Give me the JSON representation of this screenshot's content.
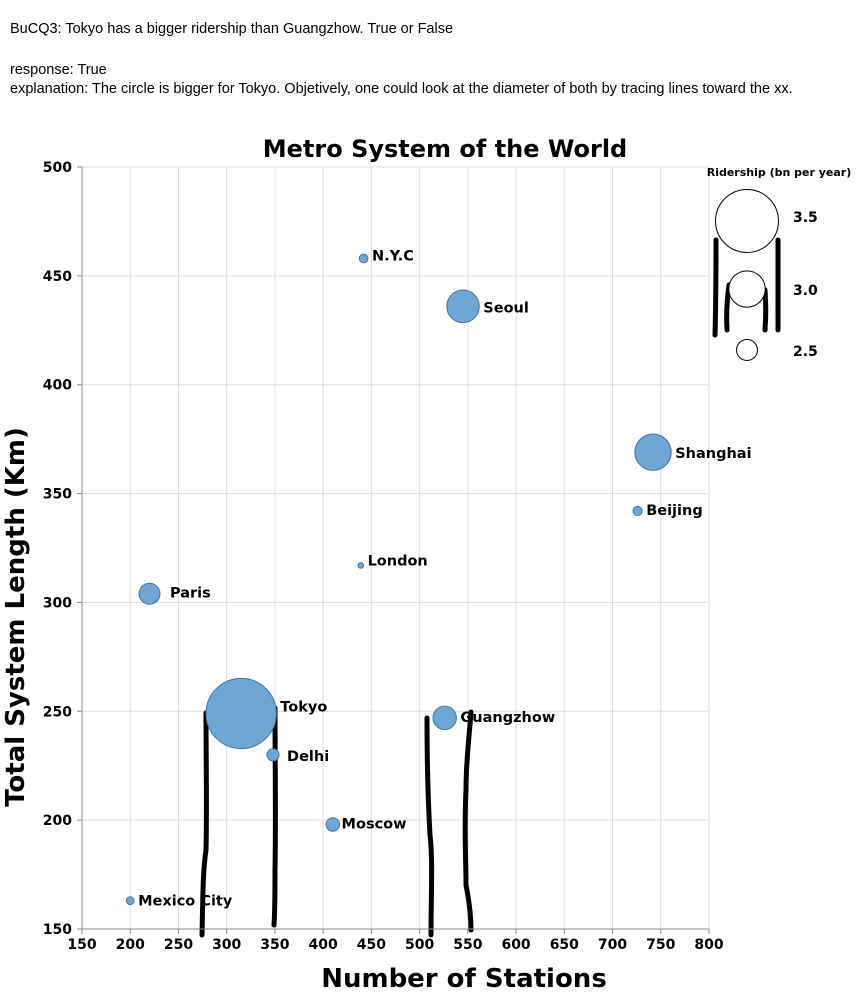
{
  "question": {
    "prompt": "BuCQ3: Tokyo has a bigger ridership than Guangzhow. True or False",
    "response": "response: True",
    "explanation": "explanation: The circle is bigger for Tokyo. Objetively, one could look at the diameter of both by tracing lines toward the xx."
  },
  "chart_data": {
    "type": "scatter",
    "title": "Metro System of the World",
    "xlabel": "Number of Stations",
    "ylabel": "Total System Length (Km)",
    "xlim": [
      150,
      800
    ],
    "ylim": [
      150,
      500
    ],
    "x_ticks": [
      150,
      200,
      250,
      300,
      350,
      400,
      450,
      500,
      550,
      600,
      650,
      700,
      750,
      800
    ],
    "y_ticks": [
      150,
      200,
      250,
      300,
      350,
      400,
      450,
      500
    ],
    "grid": true,
    "size_encoding": "Ridership (bn per year)",
    "points": [
      {
        "label": "N.Y.C",
        "x": 442,
        "y": 458,
        "ridership": 1.7
      },
      {
        "label": "Seoul",
        "x": 545,
        "y": 436,
        "ridership": 2.9
      },
      {
        "label": "Shanghai",
        "x": 742,
        "y": 369,
        "ridership": 3.0
      },
      {
        "label": "Beijing",
        "x": 726,
        "y": 342,
        "ridership": 1.75
      },
      {
        "label": "London",
        "x": 439,
        "y": 317,
        "ridership": 1.3
      },
      {
        "label": "Paris",
        "x": 220,
        "y": 304,
        "ridership": 2.5
      },
      {
        "label": "Tokyo",
        "x": 315,
        "y": 249,
        "ridership": 3.6
      },
      {
        "label": "Guangzhow",
        "x": 526,
        "y": 247,
        "ridership": 2.6
      },
      {
        "label": "Delhi",
        "x": 348,
        "y": 230,
        "ridership": 2.0
      },
      {
        "label": "Moscow",
        "x": 410,
        "y": 198,
        "ridership": 2.1
      },
      {
        "label": "Mexico City",
        "x": 200,
        "y": 163,
        "ridership": 1.6
      }
    ],
    "legend": {
      "title": "Ridership (bn per year)",
      "placement": "top-right",
      "entries": [
        {
          "label": "3.5",
          "value": 3.5
        },
        {
          "label": "3.0",
          "value": 3.0
        },
        {
          "label": "2.5",
          "value": 2.5
        }
      ]
    },
    "colors": {
      "point_fill": "#6fa6d3",
      "point_stroke": "#3f77a8",
      "grid": "#dddddd"
    }
  }
}
